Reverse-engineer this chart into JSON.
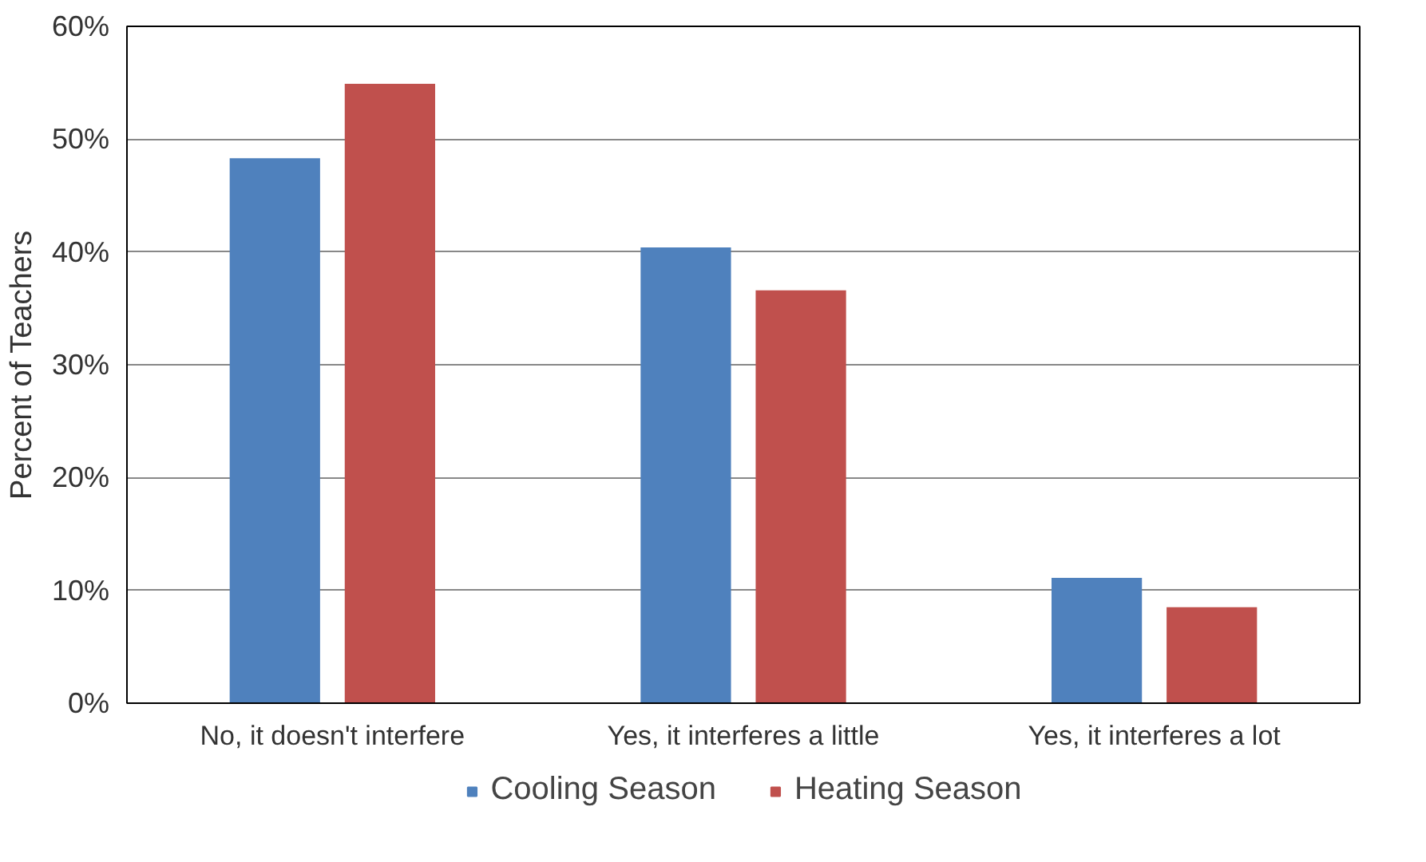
{
  "chart_data": {
    "type": "bar",
    "ylabel": "Percent of Teachers",
    "categories": [
      "No, it doesn't interfere",
      "Yes, it interferes a little",
      "Yes, it interferes a lot"
    ],
    "series": [
      {
        "name": "Cooling Season",
        "color": "#4f81bd",
        "values": [
          48.3,
          40.4,
          11.1
        ]
      },
      {
        "name": "Heating Season",
        "color": "#c0504d",
        "values": [
          54.9,
          36.6,
          8.5
        ]
      }
    ],
    "ylim": [
      0,
      60
    ],
    "yticks": [
      {
        "value": 0,
        "label": "0%"
      },
      {
        "value": 10,
        "label": "10%"
      },
      {
        "value": 20,
        "label": "20%"
      },
      {
        "value": 30,
        "label": "30%"
      },
      {
        "value": 40,
        "label": "40%"
      },
      {
        "value": 50,
        "label": "50%"
      },
      {
        "value": 60,
        "label": "60%"
      }
    ],
    "grid": "y",
    "legend": "bottom"
  }
}
